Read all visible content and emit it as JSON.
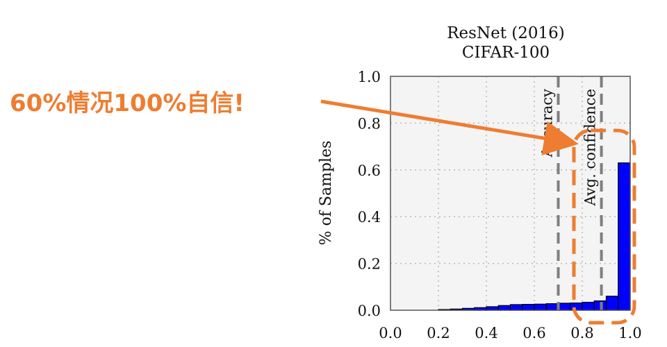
{
  "callout": {
    "text": "60%情况100%自信!",
    "color": "#ee7d31"
  },
  "chart_data": {
    "type": "bar",
    "title": [
      "ResNet (2016)",
      "CIFAR-100"
    ],
    "xlabel": "",
    "ylabel": "% of Samples",
    "xlim": [
      0.0,
      1.0
    ],
    "ylim": [
      0.0,
      1.0
    ],
    "x_ticks": [
      "0.0",
      "0.2",
      "0.4",
      "0.6",
      "0.8",
      "1.0"
    ],
    "y_ticks": [
      "0.0",
      "0.2",
      "0.4",
      "0.6",
      "0.8",
      "1.0"
    ],
    "grid": true,
    "bar_color": "#0000ff",
    "bin_width": 0.05,
    "bins": [
      0.0,
      0.05,
      0.1,
      0.15,
      0.2,
      0.25,
      0.3,
      0.35,
      0.4,
      0.45,
      0.5,
      0.55,
      0.6,
      0.65,
      0.7,
      0.75,
      0.8,
      0.85,
      0.9,
      0.95
    ],
    "values": [
      0.0,
      0.0,
      0.0,
      0.0,
      0.003,
      0.005,
      0.008,
      0.011,
      0.015,
      0.02,
      0.024,
      0.025,
      0.026,
      0.028,
      0.03,
      0.031,
      0.034,
      0.04,
      0.06,
      0.63
    ],
    "reference_lines": [
      {
        "name": "Accuracy",
        "x": 0.7
      },
      {
        "name": "Avg. confidence",
        "x": 0.88
      }
    ]
  }
}
